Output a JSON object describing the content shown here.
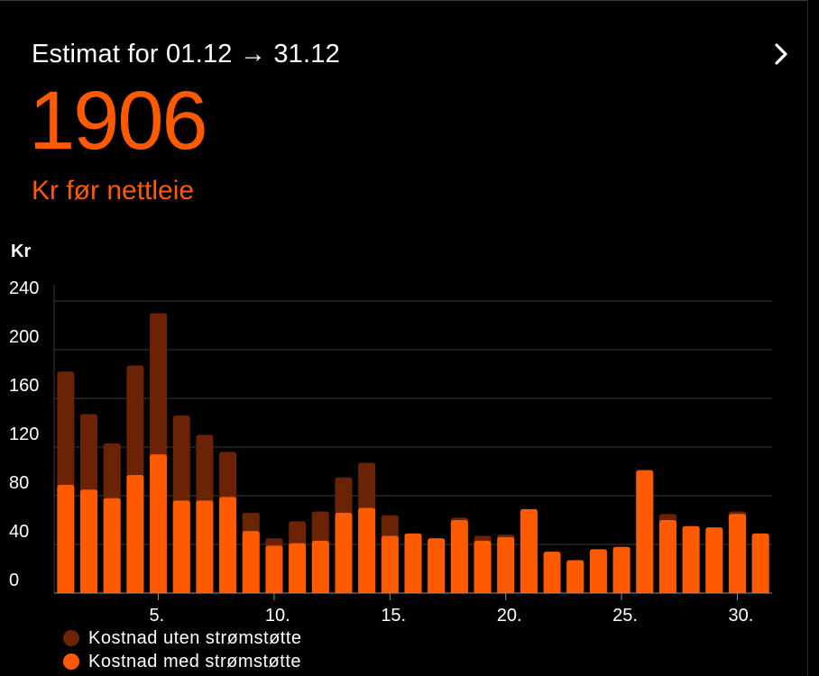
{
  "header": {
    "title": "Estimat for 01.12 → 31.12",
    "value": "1906",
    "subtitle": "Kr før nettleie"
  },
  "colors": {
    "accent": "#ff5a00",
    "bar_without_support": "#6b2205",
    "bar_with_support": "#ff5a00",
    "grid": "#3a3a3c",
    "axis_text": "#ffffff"
  },
  "chart_data": {
    "type": "bar",
    "title": "",
    "ylabel": "Kr",
    "xlabel": "",
    "ylim": [
      0,
      240
    ],
    "yticks": [
      0,
      40,
      80,
      120,
      160,
      200,
      240
    ],
    "ytick_labels": [
      "0",
      "40",
      "80",
      "120",
      "160",
      "200",
      "240"
    ],
    "categories": [
      1,
      2,
      3,
      4,
      5,
      6,
      7,
      8,
      9,
      10,
      11,
      12,
      13,
      14,
      15,
      16,
      17,
      18,
      19,
      20,
      21,
      22,
      23,
      24,
      25,
      26,
      27,
      28,
      29,
      30,
      31
    ],
    "xtick_days": [
      5,
      10,
      15,
      20,
      25,
      30
    ],
    "xtick_labels": [
      "5.",
      "10.",
      "15.",
      "20.",
      "25.",
      "30."
    ],
    "series": [
      {
        "name": "Kostnad uten strømstøtte",
        "values": [
          182,
          147,
          123,
          187,
          230,
          146,
          130,
          116,
          66,
          45,
          59,
          67,
          95,
          107,
          64,
          49,
          45,
          62,
          47,
          48,
          69,
          34,
          27,
          36,
          38,
          101,
          65,
          55,
          54,
          67,
          49
        ]
      },
      {
        "name": "Kostnad med strømstøtte",
        "values": [
          89,
          85,
          78,
          97,
          114,
          76,
          76,
          79,
          51,
          39,
          41,
          43,
          66,
          70,
          47,
          49,
          45,
          60,
          43,
          46,
          69,
          34,
          27,
          36,
          38,
          101,
          60,
          55,
          54,
          65,
          49
        ]
      }
    ]
  }
}
